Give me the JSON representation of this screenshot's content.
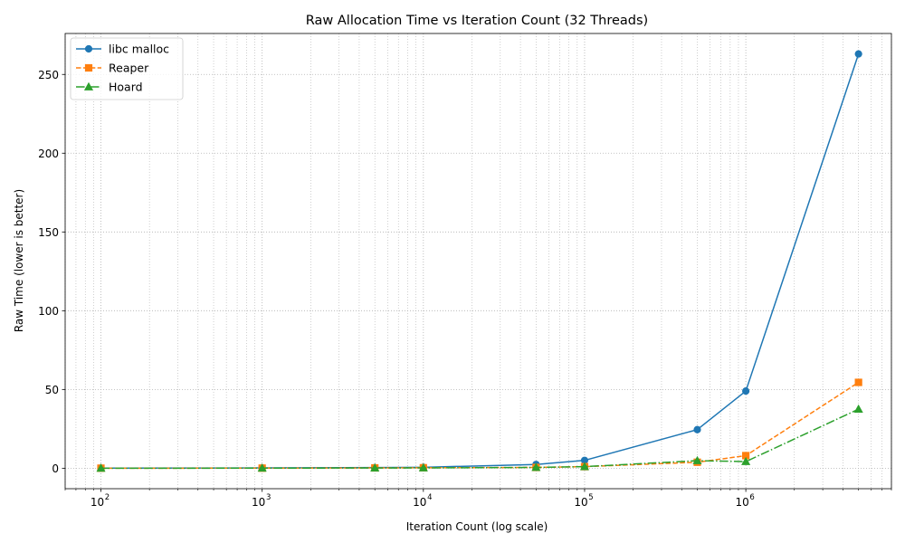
{
  "chart_data": {
    "type": "line",
    "title": "Raw Allocation Time vs Iteration Count (32 Threads)",
    "xlabel": "Iteration Count (log scale)",
    "ylabel": "Raw Time (lower is better)",
    "x_scale": "log",
    "xlim": [
      60,
      8000000
    ],
    "ylim": [
      -13,
      276
    ],
    "x": [
      100,
      1000,
      5000,
      10000,
      50000,
      100000,
      500000,
      1000000,
      5000000
    ],
    "xticks": [
      {
        "value": 100,
        "base": "10",
        "exp": "2"
      },
      {
        "value": 1000,
        "base": "10",
        "exp": "3"
      },
      {
        "value": 10000,
        "base": "10",
        "exp": "4"
      },
      {
        "value": 100000,
        "base": "10",
        "exp": "5"
      },
      {
        "value": 1000000,
        "base": "10",
        "exp": "6"
      }
    ],
    "yticks": [
      {
        "value": 0,
        "label": "0"
      },
      {
        "value": 50,
        "label": "50"
      },
      {
        "value": 100,
        "label": "100"
      },
      {
        "value": 150,
        "label": "150"
      },
      {
        "value": 200,
        "label": "200"
      },
      {
        "value": 250,
        "label": "250"
      }
    ],
    "grid": "major-and-minor",
    "legend_position": "top-left",
    "series": [
      {
        "name": "libc malloc",
        "color": "#1f77b4",
        "marker": "circle",
        "dash": "solid",
        "values": [
          0.05,
          0.2,
          0.4,
          0.6,
          2.4,
          5.0,
          24.5,
          49.0,
          263.0
        ]
      },
      {
        "name": "Reaper",
        "color": "#ff7f0e",
        "marker": "square",
        "dash": "dashed",
        "values": [
          0.02,
          0.05,
          0.2,
          0.3,
          0.5,
          1.0,
          3.8,
          8.0,
          54.5
        ]
      },
      {
        "name": "Hoard",
        "color": "#2ca02c",
        "marker": "triangle",
        "dash": "dashdot",
        "values": [
          0.02,
          0.04,
          0.15,
          0.2,
          0.5,
          1.0,
          4.8,
          4.2,
          37.5
        ]
      }
    ]
  }
}
